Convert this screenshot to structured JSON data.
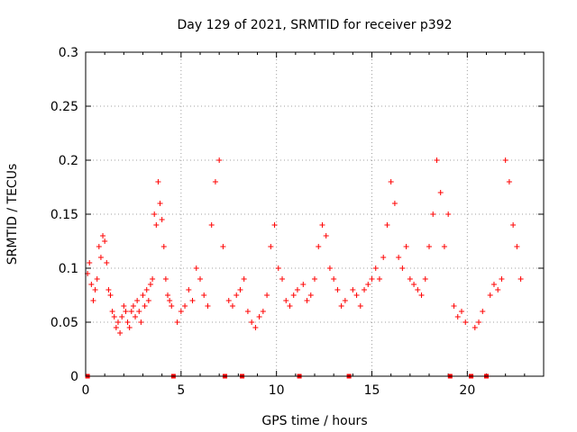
{
  "chart_data": {
    "type": "scatter",
    "title": "Day 129 of 2021, SRMTID for receiver p392",
    "xlabel": "GPS time / hours",
    "ylabel": "SRMTID / TECUs",
    "xlim": [
      0,
      24
    ],
    "ylim": [
      0,
      0.3
    ],
    "xticks": [
      0,
      5,
      10,
      15,
      20
    ],
    "xtick_labels": [
      "0",
      "5",
      "10",
      "15",
      "20"
    ],
    "yticks": [
      0,
      0.05,
      0.1,
      0.15,
      0.2,
      0.25,
      0.3
    ],
    "ytick_labels": [
      "0",
      "0.05",
      "0.1",
      "0.15",
      "0.2",
      "0.25",
      "0.3"
    ],
    "grid": true,
    "marker": "+",
    "color": "#ff0000",
    "series_name": "SRMTID",
    "zero_markers_x": [
      0.1,
      4.6,
      7.3,
      8.2,
      11.2,
      13.8,
      19.1,
      20.2,
      21.0
    ],
    "sampled_x": [
      0.1,
      0.2,
      0.3,
      0.4,
      0.5,
      0.6,
      0.7,
      0.8,
      0.9,
      1.0,
      1.1,
      1.2,
      1.3,
      1.4,
      1.5,
      1.6,
      1.7,
      1.8,
      1.9,
      2.0,
      2.1,
      2.2,
      2.3,
      2.4,
      2.5,
      2.6,
      2.7,
      2.8,
      2.9,
      3.0,
      3.1,
      3.2,
      3.3,
      3.4,
      3.5,
      3.6,
      3.7,
      3.8,
      3.9,
      4.0,
      4.1,
      4.2,
      4.3,
      4.4,
      4.5,
      4.8,
      5.0,
      5.2,
      5.4,
      5.6,
      5.8,
      6.0,
      6.2,
      6.4,
      6.6,
      6.8,
      7.0,
      7.2,
      7.5,
      7.7,
      7.9,
      8.1,
      8.3,
      8.5,
      8.7,
      8.9,
      9.1,
      9.3,
      9.5,
      9.7,
      9.9,
      10.1,
      10.3,
      10.5,
      10.7,
      10.9,
      11.1,
      11.4,
      11.6,
      11.8,
      12.0,
      12.2,
      12.4,
      12.6,
      12.8,
      13.0,
      13.2,
      13.4,
      13.6,
      14.0,
      14.2,
      14.4,
      14.6,
      14.8,
      15.0,
      15.2,
      15.4,
      15.6,
      15.8,
      16.0,
      16.2,
      16.4,
      16.6,
      16.8,
      17.0,
      17.2,
      17.4,
      17.6,
      17.8,
      18.0,
      18.2,
      18.4,
      18.6,
      18.8,
      19.0,
      19.3,
      19.5,
      19.7,
      19.9,
      20.4,
      20.6,
      20.8,
      21.2,
      21.4,
      21.6,
      21.8,
      22.0,
      22.2,
      22.4,
      22.6,
      22.8
    ],
    "sampled_y": [
      0.095,
      0.105,
      0.085,
      0.07,
      0.08,
      0.09,
      0.12,
      0.11,
      0.13,
      0.125,
      0.105,
      0.08,
      0.075,
      0.06,
      0.055,
      0.045,
      0.05,
      0.04,
      0.055,
      0.065,
      0.06,
      0.05,
      0.045,
      0.06,
      0.065,
      0.055,
      0.07,
      0.06,
      0.05,
      0.075,
      0.065,
      0.08,
      0.07,
      0.085,
      0.09,
      0.15,
      0.14,
      0.18,
      0.16,
      0.145,
      0.12,
      0.09,
      0.075,
      0.07,
      0.065,
      0.05,
      0.06,
      0.065,
      0.08,
      0.07,
      0.1,
      0.09,
      0.075,
      0.065,
      0.14,
      0.18,
      0.2,
      0.12,
      0.07,
      0.065,
      0.075,
      0.08,
      0.09,
      0.06,
      0.05,
      0.045,
      0.055,
      0.06,
      0.075,
      0.12,
      0.14,
      0.1,
      0.09,
      0.07,
      0.065,
      0.075,
      0.08,
      0.085,
      0.07,
      0.075,
      0.09,
      0.12,
      0.14,
      0.13,
      0.1,
      0.09,
      0.08,
      0.065,
      0.07,
      0.08,
      0.075,
      0.065,
      0.08,
      0.085,
      0.09,
      0.1,
      0.09,
      0.11,
      0.14,
      0.18,
      0.16,
      0.11,
      0.1,
      0.12,
      0.09,
      0.085,
      0.08,
      0.075,
      0.09,
      0.12,
      0.15,
      0.2,
      0.17,
      0.12,
      0.15,
      0.065,
      0.055,
      0.06,
      0.05,
      0.045,
      0.05,
      0.06,
      0.075,
      0.085,
      0.08,
      0.09,
      0.2,
      0.18,
      0.14,
      0.12,
      0.09
    ]
  }
}
